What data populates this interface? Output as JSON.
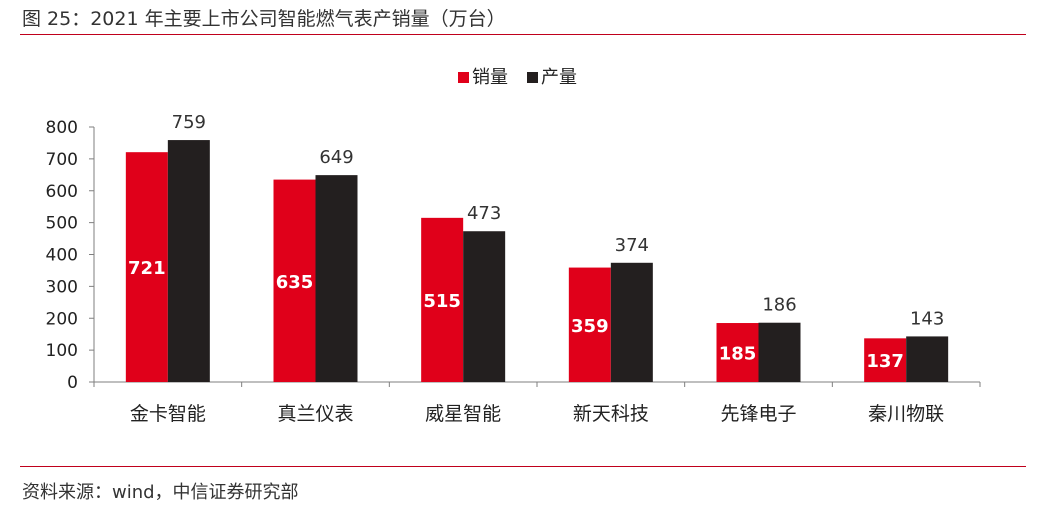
{
  "figure_title": "图 25：2021 年主要上市公司智能燃气表产销量（万台）",
  "source_note": "资料来源：wind，中信证券研究部",
  "colors": {
    "accent": "#c0001c",
    "sales": "#e0001a",
    "production": "#231f1f"
  },
  "chart_data": {
    "type": "bar",
    "categories": [
      "金卡智能",
      "真兰仪表",
      "威星智能",
      "新天科技",
      "先锋电子",
      "秦川物联"
    ],
    "series": [
      {
        "name": "销量",
        "values": [
          721,
          635,
          515,
          359,
          185,
          137
        ],
        "color": "#e0001a",
        "label_position": "inside"
      },
      {
        "name": "产量",
        "values": [
          759,
          649,
          473,
          374,
          186,
          143
        ],
        "color": "#231f1f",
        "label_position": "above"
      }
    ],
    "ylim": [
      0,
      800
    ],
    "yticks": [
      0,
      100,
      200,
      300,
      400,
      500,
      600,
      700,
      800
    ],
    "grid": false,
    "legend": "top-center"
  }
}
